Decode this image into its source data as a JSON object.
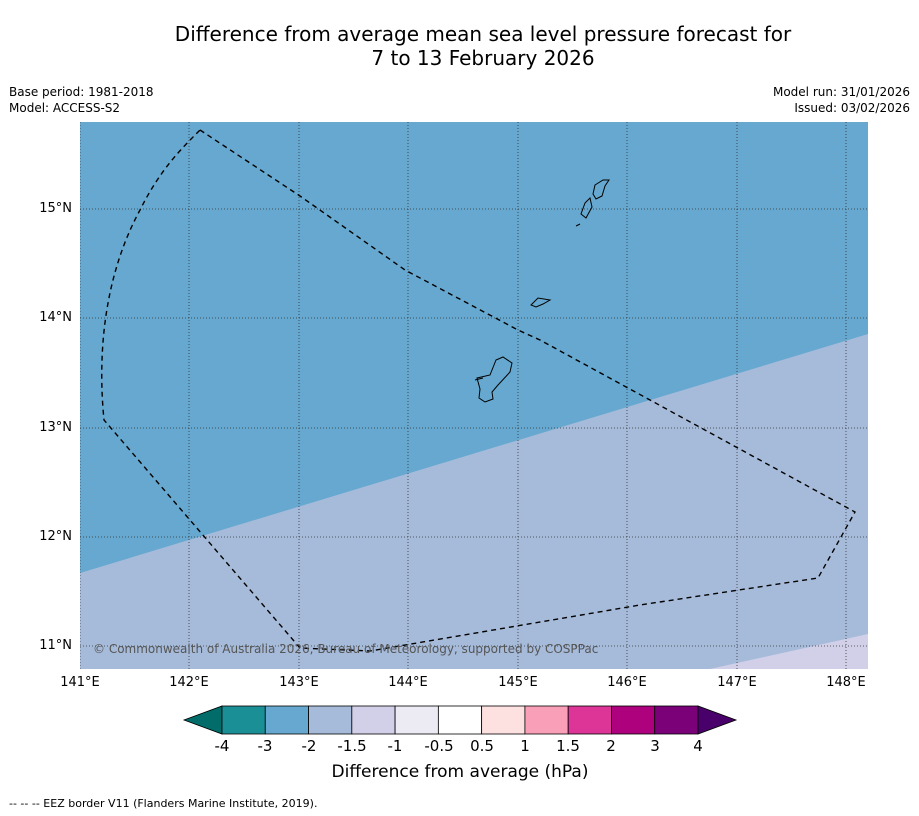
{
  "title_line1": "Difference from average mean sea level pressure forecast for",
  "title_line2": "7 to 13 February 2026",
  "meta": {
    "base_period": "Base period: 1981-2018",
    "model": "Model: ACCESS-S2",
    "model_run": "Model run: 31/01/2026",
    "issued": "Issued: 03/02/2026"
  },
  "map": {
    "lat_labels": [
      "15°N",
      "14°N",
      "13°N",
      "12°N",
      "11°N"
    ],
    "lon_labels": [
      "141°E",
      "142°E",
      "143°E",
      "144°E",
      "145°E",
      "146°E",
      "147°E",
      "148°E"
    ],
    "copyright": "© Commonwealth of Australia 2026, Bureau of Meteorology, supported by COSPPac",
    "anomaly_zones": [
      {
        "range": "-3 to -2",
        "color": "#66a8cf"
      },
      {
        "range": "-2 to -1.5",
        "color": "#a6bbda"
      },
      {
        "range": "-1.5 to -1",
        "color": "#d1d0e8"
      }
    ]
  },
  "colorbar": {
    "tick_labels": [
      "-4",
      "-3",
      "-2",
      "-1.5",
      "-1",
      "-0.5",
      "0.5",
      "1",
      "1.5",
      "2",
      "3",
      "4"
    ],
    "colors": [
      "#1a8f96",
      "#66a8cf",
      "#a6bbda",
      "#d1d0e8",
      "#eceaf2",
      "#ffffff",
      "#fde0e0",
      "#f9a0b8",
      "#dd3497",
      "#ae017e",
      "#7a0177"
    ],
    "under_color": "#016c6a",
    "over_color": "#49006a",
    "label": "Difference from average (hPa)"
  },
  "footnote": "--  --  -- EEZ border V11 (Flanders Marine Institute, 2019)."
}
